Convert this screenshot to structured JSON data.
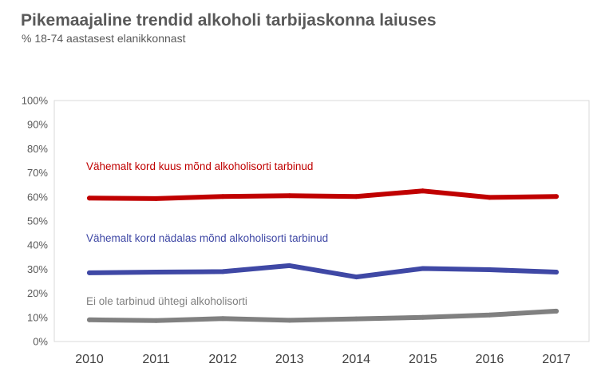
{
  "header": {
    "title": "Pikemaajaline trendid alkoholi tarbijaskonna laiuses",
    "subtitle": "% 18-74 aastasest elanikkonnast"
  },
  "chart_data": {
    "type": "line",
    "title": "Pikemaajaline trendid alkoholi tarbijaskonna laiuses",
    "subtitle": "% 18-74 aastasest elanikkonnast",
    "xlabel": "",
    "ylabel": "",
    "x": [
      "2010",
      "2011",
      "2012",
      "2013",
      "2014",
      "2015",
      "2016",
      "2017"
    ],
    "ylim": [
      0,
      100
    ],
    "yticks": [
      "0%",
      "10%",
      "20%",
      "30%",
      "40%",
      "50%",
      "60%",
      "70%",
      "80%",
      "90%",
      "100%"
    ],
    "grid": false,
    "legend": "inline labels above lines",
    "series": [
      {
        "name": "Vähemalt kord kuus mõnd alkoholisorti tarbinud",
        "color": "#c00000",
        "values": [
          59.5,
          59.3,
          60.2,
          60.5,
          60.2,
          62.5,
          59.8,
          60.2
        ]
      },
      {
        "name": "Vähemalt kord nädalas mõnd alkoholisorti tarbinud",
        "color": "#3f48a5",
        "values": [
          28.5,
          28.8,
          29.0,
          31.5,
          26.8,
          30.3,
          29.8,
          28.8
        ]
      },
      {
        "name": "Ei ole tarbinud ühtegi alkoholisorti",
        "color": "#808080",
        "values": [
          9.0,
          8.7,
          9.5,
          8.8,
          9.4,
          10.0,
          11.0,
          12.6
        ]
      }
    ]
  }
}
